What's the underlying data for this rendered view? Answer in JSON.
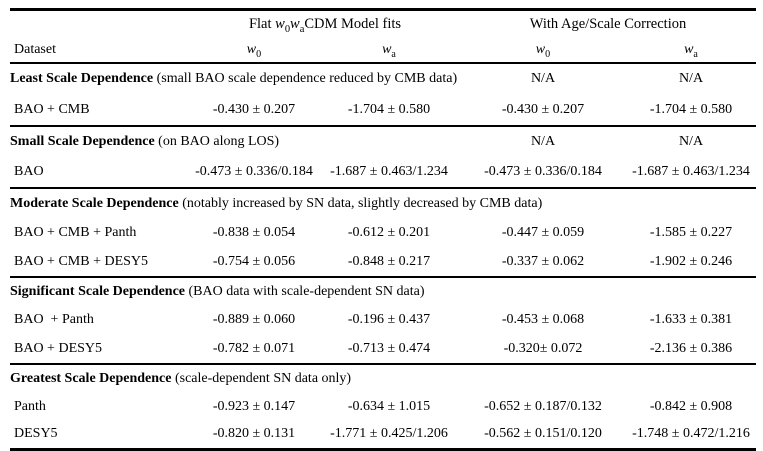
{
  "table": {
    "group_headers": {
      "flat_prefix": "Flat ",
      "flat_suffix": "CDM Model fits",
      "corrected": "With Age/Scale Correction"
    },
    "symbols": {
      "w": "w",
      "sub0": "0",
      "suba": "a"
    },
    "dataset_col": "Dataset",
    "sections": [
      {
        "title": "Least Scale Dependence",
        "note": "(small BAO scale dependence reduced by CMB data)",
        "na": [
          "N/A",
          "N/A"
        ],
        "rows": [
          {
            "dataset": "BAO + CMB",
            "values": [
              "-0.430 ± 0.207",
              "-1.704 ± 0.580",
              "-0.430 ± 0.207",
              "-1.704 ± 0.580"
            ]
          }
        ]
      },
      {
        "title": "Small Scale Dependence",
        "note": "(on BAO along LOS)",
        "na": [
          "N/A",
          "N/A"
        ],
        "rows": [
          {
            "dataset": "BAO",
            "values": [
              "-0.473 ± 0.336/0.184",
              "-1.687 ± 0.463/1.234",
              "-0.473 ± 0.336/0.184",
              "-1.687 ± 0.463/1.234"
            ]
          }
        ]
      },
      {
        "title": "Moderate Scale Dependence",
        "note": "(notably increased by SN data, slightly decreased by CMB data)",
        "rows": [
          {
            "dataset": "BAO + CMB + Panth",
            "values": [
              "-0.838 ± 0.054",
              "-0.612 ± 0.201",
              "-0.447 ± 0.059",
              "-1.585 ± 0.227"
            ]
          },
          {
            "dataset": "BAO + CMB + DESY5",
            "values": [
              "-0.754 ± 0.056",
              "-0.848 ± 0.217",
              "-0.337 ± 0.062",
              "-1.902 ± 0.246"
            ]
          }
        ]
      },
      {
        "title": "Significant Scale Dependence",
        "note": "(BAO data with scale-dependent SN data)",
        "rows": [
          {
            "dataset": "BAO  + Panth",
            "values": [
              "-0.889 ± 0.060",
              "-0.196 ± 0.437",
              "-0.453 ± 0.068",
              "-1.633 ± 0.381"
            ]
          },
          {
            "dataset": "BAO + DESY5",
            "values": [
              "-0.782 ± 0.071",
              "-0.713 ± 0.474",
              "-0.320± 0.072",
              "-2.136 ± 0.386"
            ]
          }
        ]
      },
      {
        "title": "Greatest Scale Dependence",
        "note": "(scale-dependent SN data only)",
        "rows": [
          {
            "dataset": "Panth",
            "values": [
              "-0.923 ± 0.147",
              "-0.634 ± 1.015",
              "-0.652 ± 0.187/0.132",
              "-0.842 ± 0.908"
            ]
          },
          {
            "dataset": "DESY5",
            "values": [
              "-0.820 ± 0.131",
              "-1.771 ± 0.425/1.206",
              "-0.562 ± 0.151/0.120",
              "-1.748 ± 0.472/1.216"
            ]
          }
        ]
      }
    ]
  }
}
